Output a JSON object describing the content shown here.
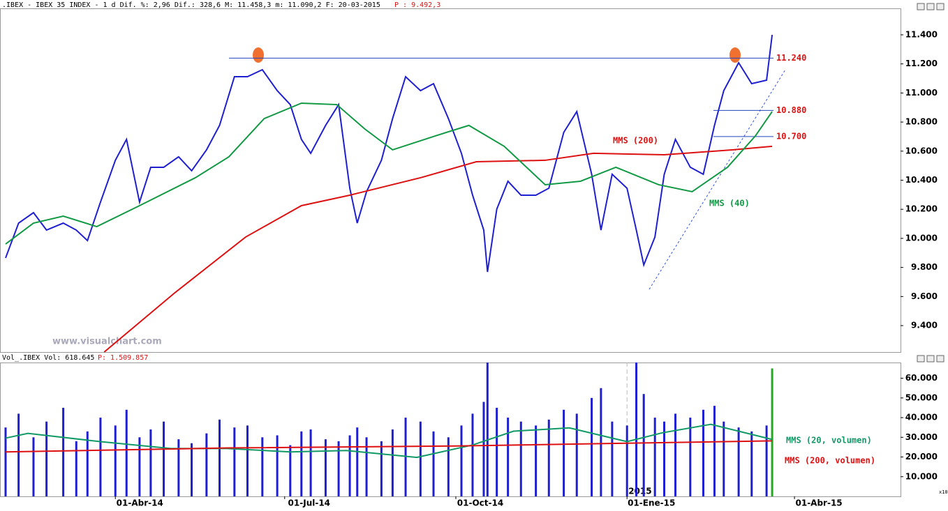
{
  "chart_data": [
    {
      "type": "line",
      "header": ".IBEX - IBEX 35 INDEX -  1 d Dif. %: 2,96 Dif.: 328,6 M: 11.458,3 m: 11.090,2 F: 20-03-2015",
      "header_p": "P : 9.492,3",
      "watermark": "www.visualchart.com",
      "xlim": [
        "2014-01-29",
        "2015-05-28"
      ],
      "ylim": [
        9218,
        11582
      ],
      "yticks": [
        {
          "value": 9400,
          "label": "9.400"
        },
        {
          "value": 9600,
          "label": "9.600"
        },
        {
          "value": 9800,
          "label": "9.800"
        },
        {
          "value": 10000,
          "label": "10.000"
        },
        {
          "value": 10200,
          "label": "10.200"
        },
        {
          "value": 10400,
          "label": "10.400"
        },
        {
          "value": 10600,
          "label": "10.600"
        },
        {
          "value": 10800,
          "label": "10.800"
        },
        {
          "value": 11000,
          "label": "11.000"
        },
        {
          "value": 11200,
          "label": "11.200"
        },
        {
          "value": 11400,
          "label": "11.400"
        }
      ],
      "color": "#1f1fd0",
      "x": [
        "2014-02-01",
        "2014-02-08",
        "2014-02-16",
        "2014-02-23",
        "2014-03-04",
        "2014-03-11",
        "2014-03-17",
        "2014-03-24",
        "2014-04-01",
        "2014-04-07",
        "2014-04-14",
        "2014-04-20",
        "2014-04-27",
        "2014-05-05",
        "2014-05-12",
        "2014-05-20",
        "2014-05-27",
        "2014-06-04",
        "2014-06-11",
        "2014-06-19",
        "2014-06-27",
        "2014-07-04",
        "2014-07-10",
        "2014-07-15",
        "2014-07-23",
        "2014-07-30",
        "2014-08-05",
        "2014-08-09",
        "2014-08-14",
        "2014-08-22",
        "2014-08-28",
        "2014-09-04",
        "2014-09-12",
        "2014-09-19",
        "2014-09-27",
        "2014-10-04",
        "2014-10-10",
        "2014-10-16",
        "2014-10-18",
        "2014-10-23",
        "2014-10-29",
        "2014-11-05",
        "2014-11-13",
        "2014-11-20",
        "2014-11-28",
        "2014-12-05",
        "2014-12-13",
        "2014-12-18",
        "2014-12-24",
        "2015-01-01",
        "2015-01-06",
        "2015-01-10",
        "2015-01-16",
        "2015-01-21",
        "2015-01-27",
        "2015-02-04",
        "2015-02-11",
        "2015-02-17",
        "2015-02-22",
        "2015-03-02",
        "2015-03-09",
        "2015-03-17",
        "2015-03-20"
      ],
      "values": [
        9865,
        10105,
        10177,
        10057,
        10105,
        10057,
        9985,
        10249,
        10537,
        10681,
        10249,
        10489,
        10489,
        10561,
        10465,
        10609,
        10777,
        11112,
        11112,
        11160,
        11016,
        10920,
        10681,
        10585,
        10777,
        10920,
        10345,
        10105,
        10321,
        10537,
        10824,
        11112,
        11016,
        11064,
        10824,
        10585,
        10297,
        10057,
        9769,
        10201,
        10393,
        10297,
        10297,
        10345,
        10729,
        10872,
        10441,
        10057,
        10441,
        10345,
        10057,
        9817,
        10009,
        10441,
        10681,
        10489,
        10441,
        10777,
        11016,
        11208,
        11064,
        11088,
        11400
      ],
      "series": [
        {
          "name": "MMS (200)",
          "color": "#dd1111",
          "x": [
            "2014-03-26",
            "2014-05-03",
            "2014-06-10",
            "2014-07-10",
            "2014-08-05",
            "2014-09-12",
            "2014-10-12",
            "2014-11-18",
            "2014-12-14",
            "2015-01-21",
            "2015-02-27",
            "2015-03-20"
          ],
          "values": [
            9218,
            9626,
            10009,
            10225,
            10297,
            10417,
            10527,
            10537,
            10585,
            10575,
            10609,
            10633
          ]
        },
        {
          "name": "MMS (40)",
          "color": "#119944",
          "x": [
            "2014-02-01",
            "2014-02-16",
            "2014-03-04",
            "2014-03-22",
            "2014-04-14",
            "2014-05-14",
            "2014-06-01",
            "2014-06-20",
            "2014-07-10",
            "2014-07-29",
            "2014-08-13",
            "2014-08-28",
            "2014-09-20",
            "2014-10-08",
            "2014-10-27",
            "2014-11-18",
            "2014-12-07",
            "2014-12-26",
            "2015-01-18",
            "2015-02-05",
            "2015-02-24",
            "2015-03-11",
            "2015-03-20"
          ],
          "values": [
            9961,
            10105,
            10153,
            10081,
            10225,
            10417,
            10561,
            10824,
            10930,
            10920,
            10753,
            10609,
            10705,
            10777,
            10633,
            10369,
            10393,
            10489,
            10369,
            10321,
            10489,
            10705,
            10872
          ]
        }
      ],
      "levels": [
        {
          "value": 11240,
          "label": "11.240"
        },
        {
          "value": 10880,
          "label": "10.880"
        },
        {
          "value": 10700,
          "label": "10.700"
        }
      ]
    },
    {
      "type": "bar",
      "header": "Vol_.IBEX Vol: 618.645",
      "header_p": "P: 1.509.857",
      "unit_label": "x10",
      "xlim": [
        "2014-01-29",
        "2015-05-28"
      ],
      "ylim": [
        0,
        68000
      ],
      "yticks": [
        {
          "value": 10000,
          "label": "10.000"
        },
        {
          "value": 20000,
          "label": "20.000"
        },
        {
          "value": 30000,
          "label": "30.000"
        },
        {
          "value": 40000,
          "label": "40.000"
        },
        {
          "value": 50000,
          "label": "50.000"
        },
        {
          "value": 60000,
          "label": "60.000"
        }
      ],
      "xticks": [
        {
          "value": "2014-04-01",
          "label": "01-Abr-14"
        },
        {
          "value": "2014-07-01",
          "label": "01-Jul-14"
        },
        {
          "value": "2014-10-01",
          "label": "01-Oct-14"
        },
        {
          "value": "2015-01-01",
          "label": "01-Ene-15"
        },
        {
          "value": "2015-04-01",
          "label": "01-Abr-15"
        }
      ],
      "year_label": "2015",
      "color": "#1f1fd0",
      "last_bar_color": "#22aa22",
      "x": [
        "2014-02-01",
        "2014-02-08",
        "2014-02-16",
        "2014-02-23",
        "2014-03-04",
        "2014-03-11",
        "2014-03-17",
        "2014-03-24",
        "2014-04-01",
        "2014-04-07",
        "2014-04-14",
        "2014-04-20",
        "2014-04-27",
        "2014-05-05",
        "2014-05-12",
        "2014-05-20",
        "2014-05-27",
        "2014-06-04",
        "2014-06-11",
        "2014-06-19",
        "2014-06-27",
        "2014-07-04",
        "2014-07-10",
        "2014-07-15",
        "2014-07-23",
        "2014-07-30",
        "2014-08-05",
        "2014-08-09",
        "2014-08-14",
        "2014-08-22",
        "2014-08-28",
        "2014-09-04",
        "2014-09-12",
        "2014-09-19",
        "2014-09-27",
        "2014-10-04",
        "2014-10-10",
        "2014-10-16",
        "2014-10-18",
        "2014-10-23",
        "2014-10-29",
        "2014-11-05",
        "2014-11-13",
        "2014-11-20",
        "2014-11-28",
        "2014-12-05",
        "2014-12-13",
        "2014-12-18",
        "2014-12-24",
        "2015-01-01",
        "2015-01-06",
        "2015-01-10",
        "2015-01-16",
        "2015-01-21",
        "2015-01-27",
        "2015-02-04",
        "2015-02-11",
        "2015-02-17",
        "2015-02-22",
        "2015-03-02",
        "2015-03-09",
        "2015-03-17",
        "2015-03-20"
      ],
      "values": [
        35000,
        42000,
        30000,
        38000,
        45000,
        28000,
        33000,
        40000,
        36000,
        44000,
        30000,
        34000,
        38000,
        29000,
        27000,
        32000,
        39000,
        35000,
        36000,
        30000,
        31000,
        26000,
        33000,
        34000,
        29000,
        28000,
        31000,
        35000,
        30000,
        28000,
        34000,
        40000,
        38000,
        33000,
        30000,
        36000,
        42000,
        48000,
        68000,
        45000,
        40000,
        38000,
        36000,
        39000,
        44000,
        42000,
        50000,
        55000,
        38000,
        36000,
        68000,
        52000,
        40000,
        38000,
        42000,
        40000,
        44000,
        46000,
        38000,
        35000,
        33000,
        36000,
        65000
      ],
      "series": [
        {
          "name": "MMS (20, volumen)",
          "color": "#119966",
          "x": [
            "2014-02-01",
            "2014-02-13",
            "2014-03-24",
            "2014-05-01",
            "2014-05-31",
            "2014-07-04",
            "2014-08-03",
            "2014-09-10",
            "2014-10-10",
            "2014-11-01",
            "2014-12-01",
            "2015-01-01",
            "2015-01-20",
            "2015-02-15",
            "2015-03-20"
          ],
          "values": [
            29600,
            32000,
            27800,
            24300,
            24300,
            22600,
            23300,
            19800,
            26100,
            33100,
            34800,
            27800,
            32300,
            36600,
            28900
          ]
        },
        {
          "name": "MMS (200, volumen)",
          "color": "#dd1111",
          "x": [
            "2014-02-01",
            "2014-06-01",
            "2014-10-01",
            "2015-01-01",
            "2015-03-20"
          ],
          "values": [
            22600,
            24600,
            25600,
            27000,
            28200
          ]
        }
      ]
    }
  ]
}
